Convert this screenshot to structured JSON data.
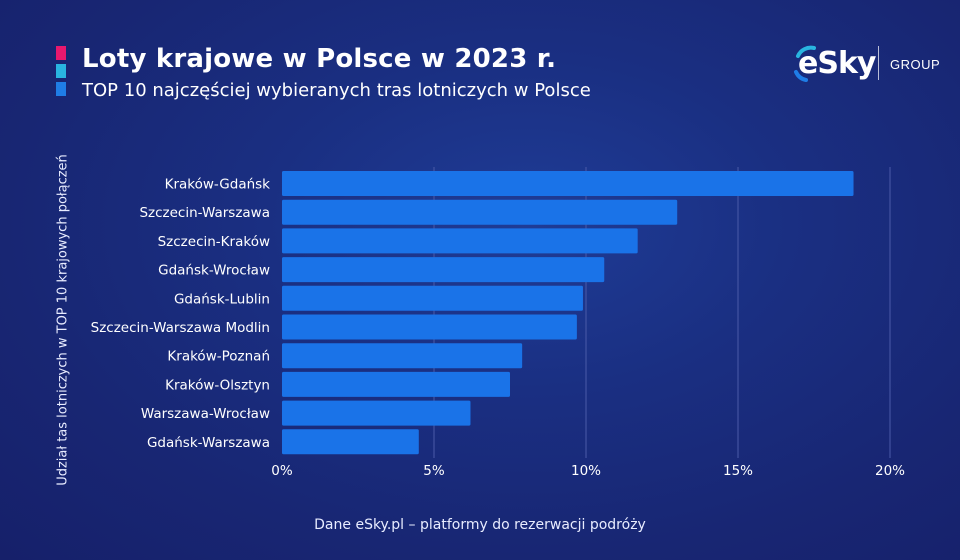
{
  "header": {
    "title": "Loty krajowe w Polsce w 2023 r.",
    "subtitle": "TOP 10 najczęściej wybieranych tras lotniczych w Polsce",
    "accent_colors": [
      "#e8186e",
      "#29b5e0",
      "#1f7de6"
    ]
  },
  "logo": {
    "brand": "eSky",
    "group": "GROUP"
  },
  "footer": {
    "source": "Dane eSky.pl – platformy do rezerwacji podróży"
  },
  "colors": {
    "bar": "#1a73e8",
    "grid": "#4a5aa8"
  },
  "chart_data": {
    "type": "bar",
    "orientation": "horizontal",
    "title": "Loty krajowe w Polsce w 2023 r.",
    "subtitle": "TOP 10 najczęściej wybieranych tras lotniczych w Polsce",
    "ylabel": "Udział tas lotniczych w TOP 10 krajowych połączeń",
    "xlabel": "",
    "categories": [
      "Kraków-Gdańsk",
      "Szczecin-Warszawa",
      "Szczecin-Kraków",
      "Gdańsk-Wrocław",
      "Gdańsk-Lublin",
      "Szczecin-Warszawa Modlin",
      "Kraków-Poznań",
      "Kraków-Olsztyn",
      "Warszawa-Wrocław",
      "Gdańsk-Warszawa"
    ],
    "values": [
      18.8,
      13.0,
      11.7,
      10.6,
      9.9,
      9.7,
      7.9,
      7.5,
      6.2,
      4.5
    ],
    "xlim": [
      0,
      20
    ],
    "xticks": [
      0,
      5,
      10,
      15,
      20
    ],
    "xtick_labels": [
      "0%",
      "5%",
      "10%",
      "15%",
      "20%"
    ],
    "grid": "vertical",
    "legend": "none"
  }
}
